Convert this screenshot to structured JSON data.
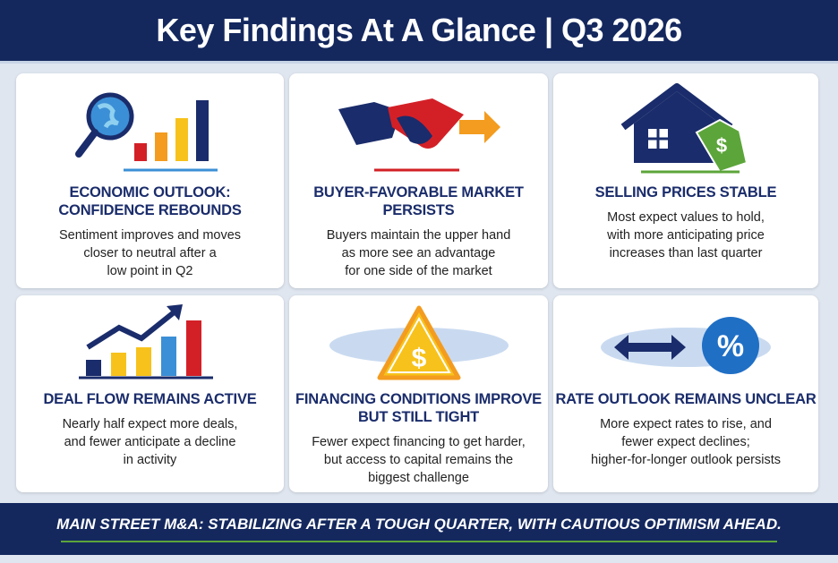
{
  "header": {
    "title": "Key Findings At A Glance | Q3 2026"
  },
  "cards": [
    {
      "title_lines": [
        "ECONOMIC OUTLOOK:",
        "CONFIDENCE REBOUNDS"
      ],
      "body_lines": [
        "Sentiment improves and moves",
        "closer to neutral after a",
        "low point in Q2"
      ]
    },
    {
      "title_lines": [
        "BUYER-FAVORABLE MARKET",
        "PERSISTS"
      ],
      "body_lines": [
        "Buyers maintain the upper hand",
        "as more see an advantage",
        "for one side of the market"
      ]
    },
    {
      "title_lines": [
        "SELLING PRICES STABLE"
      ],
      "body_lines": [
        "Most expect values to hold,",
        "with more anticipating price",
        "increases than last quarter"
      ]
    },
    {
      "title_lines": [
        "DEAL FLOW REMAINS ACTIVE"
      ],
      "body_lines": [
        "Nearly half expect more deals,",
        "and fewer anticipate a decline",
        "in activity"
      ]
    },
    {
      "title_lines": [
        "FINANCING CONDITIONS IMPROVE",
        "BUT STILL TIGHT"
      ],
      "body_lines": [
        "Fewer expect financing to get harder,",
        "but access to capital remains the",
        "biggest challenge"
      ]
    },
    {
      "title_lines": [
        "RATE OUTLOOK REMAINS UNCLEAR"
      ],
      "body_lines": [
        "More expect rates to rise, and",
        "fewer expect declines;",
        "higher-for-longer outlook persists"
      ]
    }
  ],
  "footer": {
    "text": "MAIN STREET M&A: STABILIZING AFTER A TOUGH QUARTER, WITH CAUTIOUS OPTIMISM AHEAD."
  }
}
